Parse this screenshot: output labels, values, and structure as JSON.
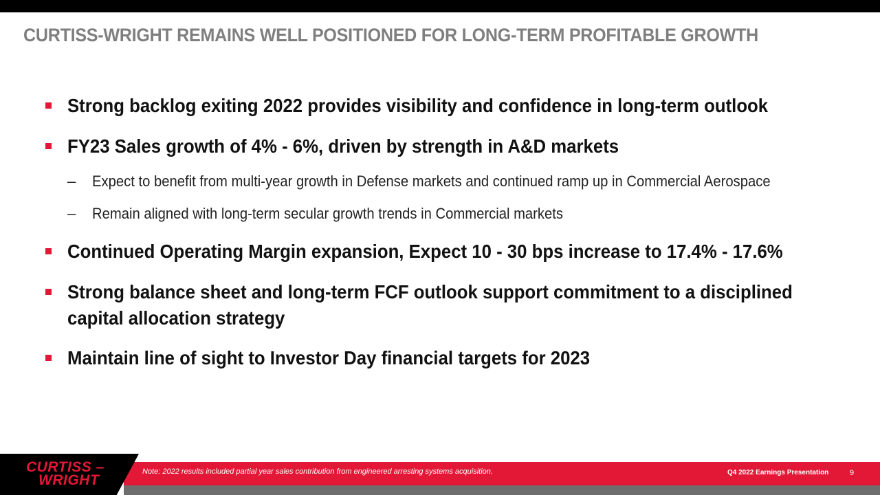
{
  "slide": {
    "title": "CURTISS-WRIGHT REMAINS WELL POSITIONED FOR LONG-TERM PROFITABLE GROWTH",
    "bullets": [
      {
        "text": "Strong backlog exiting 2022 provides visibility and confidence in long-term outlook"
      },
      {
        "text": "FY23 Sales growth of 4% - 6%, driven by strength in A&D markets",
        "sub": [
          "Expect to benefit from multi-year growth in Defense markets and continued ramp up in Commercial Aerospace",
          "Remain aligned with long-term secular growth trends in Commercial markets"
        ]
      },
      {
        "text": "Continued Operating Margin expansion, Expect 10 - 30 bps increase to 17.4% - 17.6%"
      },
      {
        "text": "Strong balance sheet and long-term FCF outlook support commitment to a disciplined",
        "text2": "capital allocation strategy"
      },
      {
        "text": "Maintain line of sight to Investor Day financial targets for 2023"
      }
    ],
    "sub_dash": "–",
    "bullet_color": "#e31837"
  },
  "footer": {
    "logo_line1": "CURTISS –",
    "logo_line2": "WRIGHT",
    "note": "Note: 2022 results included partial year sales contribution from engineered  arresting systems acquisition.",
    "presentation": "Q4 2022 Earnings Presentation",
    "page_number": "9"
  }
}
